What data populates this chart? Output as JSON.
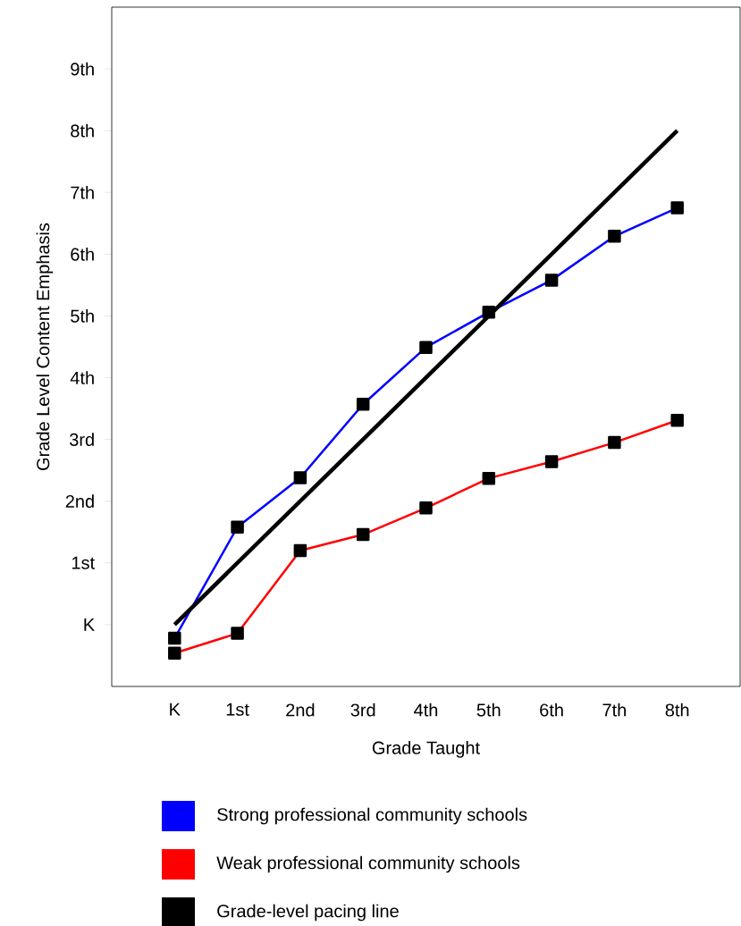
{
  "chart_data": {
    "type": "line",
    "xlabel": "Grade Taught",
    "ylabel": "Grade Level Content Emphasis",
    "xlim": [
      -1,
      9
    ],
    "ylim": [
      -1,
      10
    ],
    "xticks": [
      {
        "value": 0,
        "label": "K"
      },
      {
        "value": 1,
        "label": "1st"
      },
      {
        "value": 2,
        "label": "2nd"
      },
      {
        "value": 3,
        "label": "3rd"
      },
      {
        "value": 4,
        "label": "4th"
      },
      {
        "value": 5,
        "label": "5th"
      },
      {
        "value": 6,
        "label": "6th"
      },
      {
        "value": 7,
        "label": "7th"
      },
      {
        "value": 8,
        "label": "8th"
      }
    ],
    "yticks": [
      {
        "value": 0,
        "label": "K"
      },
      {
        "value": 1,
        "label": "1st"
      },
      {
        "value": 2,
        "label": "2nd"
      },
      {
        "value": 3,
        "label": "3rd"
      },
      {
        "value": 4,
        "label": "4th"
      },
      {
        "value": 5,
        "label": "5th"
      },
      {
        "value": 6,
        "label": "6th"
      },
      {
        "value": 7,
        "label": "7th"
      },
      {
        "value": 8,
        "label": "8th"
      },
      {
        "value": 9,
        "label": "9th"
      }
    ],
    "x": [
      0,
      1,
      2,
      3,
      4,
      5,
      6,
      7,
      8
    ],
    "marker": "square",
    "legend": "bottom",
    "grid": false,
    "series": [
      {
        "name": "Strong professional community schools",
        "color": "#0000ff",
        "values": [
          -0.22,
          1.58,
          2.38,
          3.57,
          4.49,
          5.06,
          5.58,
          6.29,
          6.75
        ]
      },
      {
        "name": "Weak professional community schools",
        "color": "#ff0000",
        "values": [
          -0.46,
          -0.14,
          1.2,
          1.46,
          1.89,
          2.37,
          2.64,
          2.95,
          3.31
        ]
      },
      {
        "name": "Grade-level pacing line",
        "color": "#000000",
        "x": [
          0,
          8
        ],
        "values": [
          0,
          8
        ],
        "marker": "none"
      }
    ]
  }
}
